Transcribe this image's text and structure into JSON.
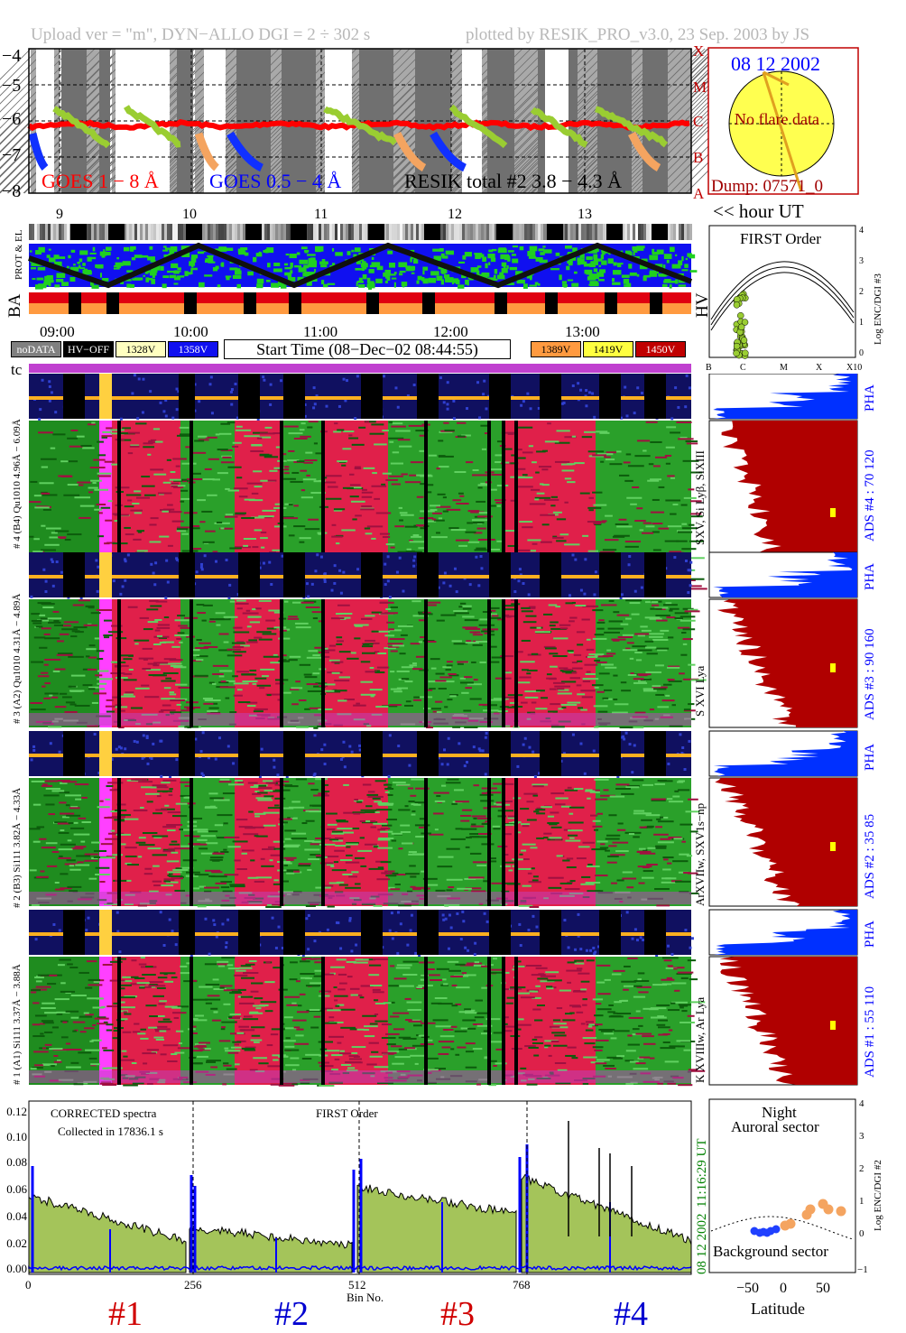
{
  "header": {
    "left": "Upload ver = \"m\", DYN−ALLO DGI =   2 ÷ 302 s",
    "right": "plotted by RESIK_PRO_v3.0, 23 Sep. 2003 by JS"
  },
  "goes": {
    "yticks": [
      "−4",
      "−5",
      "−6",
      "−7",
      "−8"
    ],
    "classes": [
      "X",
      "M",
      "C",
      "B",
      "A"
    ],
    "legend_goes_long": "GOES 1 − 8 Å",
    "legend_goes_short": "GOES 0.5 − 4 Å",
    "legend_resik": "RESIK total #2  3.8 − 4.3 Å",
    "hour_ticks": [
      "9",
      "10",
      "11",
      "12",
      "13"
    ],
    "hour_label": "<< hour UT"
  },
  "sun": {
    "date": "08 12 2002",
    "flare": "No flare data",
    "dump": "Dump: 07571_0"
  },
  "panels": {
    "prot_el": "PROT & EL",
    "ba": "BA",
    "hv": "HV",
    "tc": "tc"
  },
  "time_axis": [
    "09:00",
    "10:00",
    "11:00",
    "12:00",
    "13:00"
  ],
  "legend_boxes": {
    "nodata": "noDATA",
    "hvoff": "HV−OFF",
    "v1328": "1328V",
    "v1358": "1358V",
    "start": "Start Time (08−Dec−02 08:44:55)",
    "v1389": "1389V",
    "v1419": "1419V",
    "v1450": "1450V"
  },
  "first_order": {
    "title": "FIRST Order",
    "ylabel": "Log ENC/DGI #3",
    "yticks": [
      "4",
      "3",
      "2",
      "1",
      "0"
    ],
    "xticks": [
      "B",
      "C",
      "M",
      "X",
      "X10"
    ]
  },
  "detectors": [
    {
      "pha_label": "#4 (B4) Qu1010 4.96Å − 6.09Å",
      "spec_label": "# 4 (B4) Qu1010 4.96Å − 6.09Å",
      "lines": "SXV, Si Lyβ, SiXIII",
      "ads": "ADS #4 :   70 120",
      "pha": "PHA"
    },
    {
      "pha_label": "4.31Å − 4.89Å",
      "spec_label": "# 3 (A2) Qu1010  4.31Å − 4.89Å",
      "lines": "S XVI Lya",
      "ads": "ADS #3 :   90 160",
      "pha": "PHA"
    },
    {
      "pha_label": "3.82Å − 4.33Å",
      "spec_label": "# 2 (B3) Si111  3.82Å − 4.33Å",
      "lines": "ArXVIIw, SXV1s−np",
      "ads": "ADS #2 :   35  85",
      "pha": "PHA"
    },
    {
      "pha_label": "3.37Å − 3.88Å",
      "spec_label": "# 1 (A1) Si111  3.37Å − 3.88Å",
      "lines": "K XVIIIw, Ar Lya",
      "ads": "ADS #1 :   55 110",
      "pha": "PHA"
    }
  ],
  "spectrum": {
    "title": "CORRECTED spectra",
    "collected": "Collected in 17836.1 s",
    "order": "FIRST Order",
    "yticks": [
      "0.12",
      "0.10",
      "0.08",
      "0.06",
      "0.04",
      "0.02",
      "0.00"
    ],
    "xticks": [
      "0",
      "256",
      "512",
      "768"
    ],
    "xlabel": "Bin No.",
    "side_time": "11:16:29 UT",
    "side_date": "08 12 2002",
    "sections": [
      "#1",
      "#2",
      "#3",
      "#4"
    ]
  },
  "latitude": {
    "night": "Night",
    "auroral": "Auroral sector",
    "background": "Background sector",
    "xlabel": "Latitude",
    "xticks": [
      "−50",
      "0",
      "50"
    ],
    "ylabel": "Log ENC/DGI #2",
    "yticks": [
      "4",
      "3",
      "2",
      "1",
      "0",
      "−1"
    ]
  },
  "colors": {
    "goes_long": "#ff0000",
    "goes_short": "#0000ff",
    "resik": "#9acd32",
    "sun": "#ffff50",
    "ads_fill": "#b00000",
    "pha_fill": "#0030ff",
    "spectrum_fill": "#a4c45a",
    "tc": "#c040d0"
  }
}
